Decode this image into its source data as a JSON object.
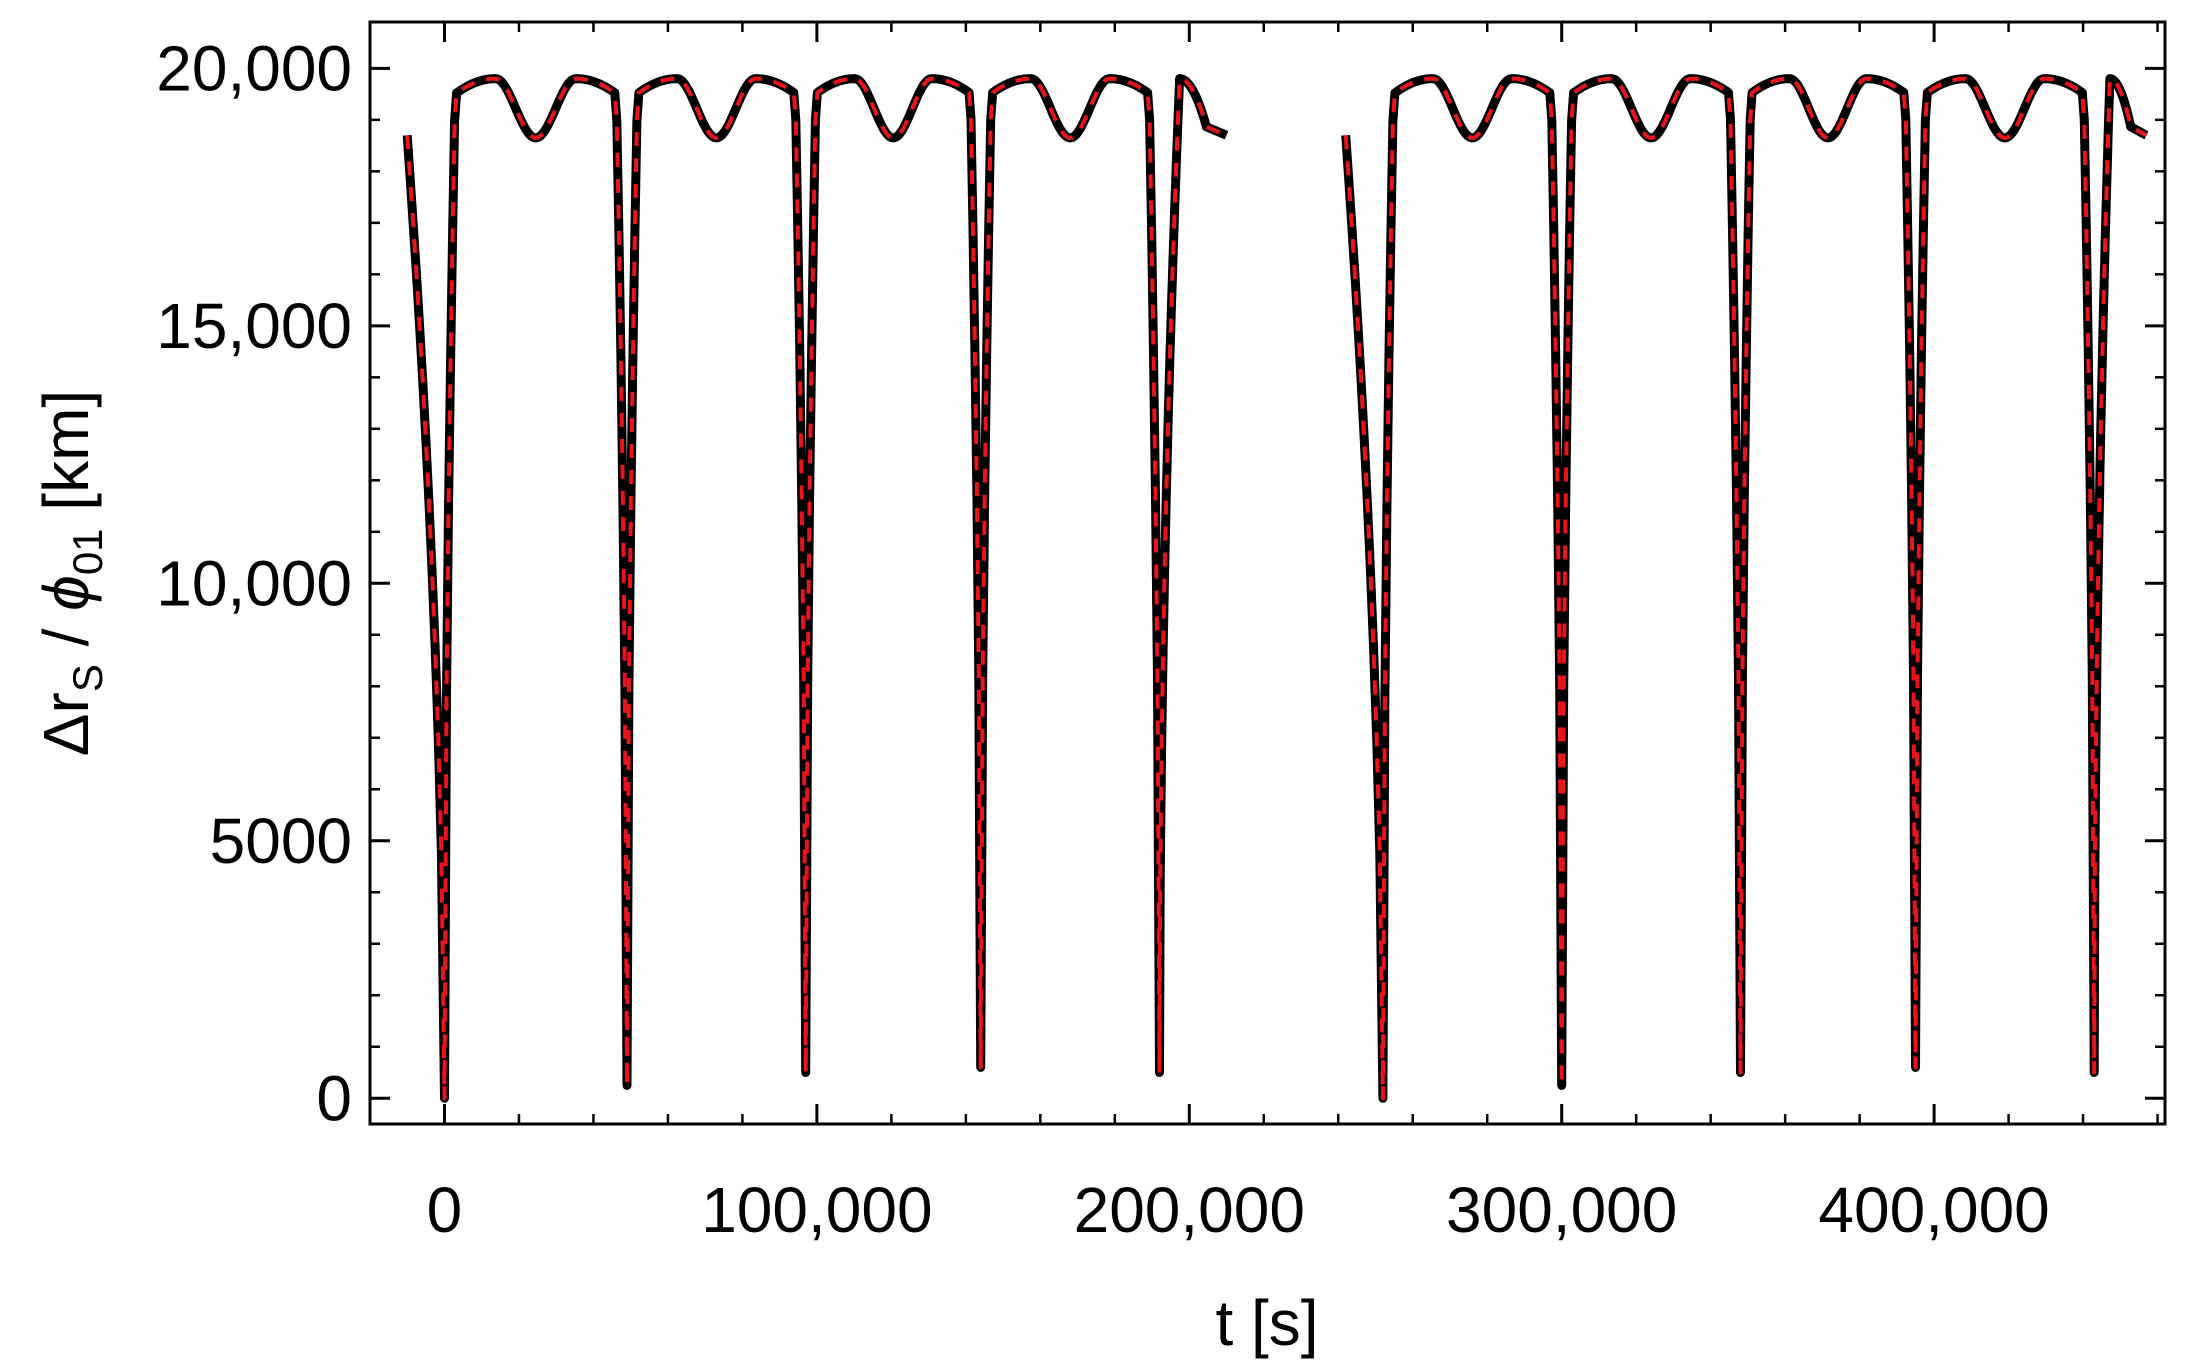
{
  "chart_data": {
    "type": "line",
    "title": "",
    "xlabel": "t [s]",
    "ylabel_parts": {
      "delta": "Δr",
      "sub1": "S",
      "slash": " / ",
      "phi": "ϕ",
      "sub2": "01",
      "unit": " [km]"
    },
    "xlim": [
      -20000,
      462000
    ],
    "ylim": [
      -500,
      20900
    ],
    "xticks": [
      0,
      100000,
      200000,
      300000,
      400000
    ],
    "xtick_labels": [
      "0",
      "100,000",
      "200,000",
      "300,000",
      "400,000"
    ],
    "yticks": [
      0,
      5000,
      10000,
      15000,
      20000
    ],
    "ytick_labels": [
      "0",
      "5000",
      "10,000",
      "15,000",
      "20,000"
    ],
    "grid": false,
    "legend": "none",
    "colors": {
      "solid": "#000000",
      "dashed": "#e8141c"
    },
    "segments": [
      {
        "t_start": -10000,
        "t_end": 210000,
        "minima": [
          {
            "t": 0,
            "v": 0
          },
          {
            "t": 49000,
            "v": 250
          },
          {
            "t": 97000,
            "v": 500
          },
          {
            "t": 144000,
            "v": 600
          },
          {
            "t": 192000,
            "v": 500
          }
        ]
      },
      {
        "t_start": 242000,
        "t_end": 457000,
        "minima": [
          {
            "t": 252000,
            "v": 0
          },
          {
            "t": 300000,
            "v": 250
          },
          {
            "t": 348000,
            "v": 500
          },
          {
            "t": 395000,
            "v": 600
          },
          {
            "t": 443000,
            "v": 500
          }
        ]
      }
    ],
    "wave": {
      "max": 19800,
      "inner_min": 18650,
      "end_value": 18700
    },
    "series": [
      {
        "name": "",
        "style": "solid"
      },
      {
        "name": "",
        "style": "dashed"
      }
    ]
  }
}
